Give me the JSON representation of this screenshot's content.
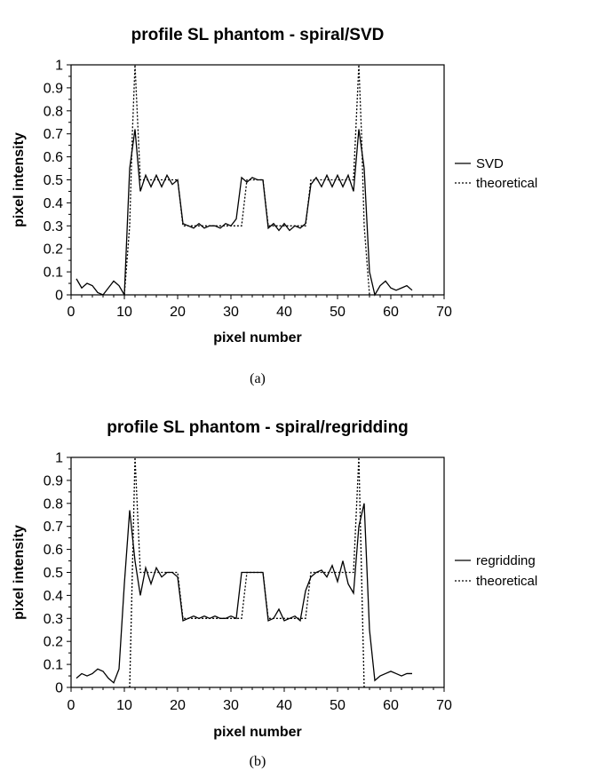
{
  "chart_data": [
    {
      "type": "line",
      "title": "profile SL phantom - spiral/SVD",
      "xlabel": "pixel number",
      "ylabel": "pixel intensity",
      "xlim": [
        0,
        70
      ],
      "ylim": [
        0,
        1
      ],
      "xticks": [
        "0",
        "10",
        "20",
        "30",
        "40",
        "50",
        "60",
        "70"
      ],
      "yticks": [
        "0",
        "0.1",
        "0.2",
        "0.3",
        "0.4",
        "0.5",
        "0.6",
        "0.7",
        "0.8",
        "0.9",
        "1"
      ],
      "legend_position": "right",
      "caption": "(a)",
      "series": [
        {
          "name": "SVD",
          "style": "solid",
          "x": [
            1,
            2,
            3,
            4,
            5,
            6,
            7,
            8,
            9,
            10,
            11,
            12,
            13,
            14,
            15,
            16,
            17,
            18,
            19,
            20,
            21,
            22,
            23,
            24,
            25,
            26,
            27,
            28,
            29,
            30,
            31,
            32,
            33,
            34,
            35,
            36,
            37,
            38,
            39,
            40,
            41,
            42,
            43,
            44,
            45,
            46,
            47,
            48,
            49,
            50,
            51,
            52,
            53,
            54,
            55,
            56,
            57,
            58,
            59,
            60,
            61,
            62,
            63,
            64
          ],
          "y": [
            0.07,
            0.03,
            0.05,
            0.04,
            0.01,
            0.0,
            0.03,
            0.06,
            0.04,
            0.0,
            0.55,
            0.72,
            0.45,
            0.52,
            0.47,
            0.52,
            0.47,
            0.52,
            0.48,
            0.5,
            0.31,
            0.3,
            0.29,
            0.31,
            0.29,
            0.3,
            0.3,
            0.29,
            0.31,
            0.3,
            0.33,
            0.51,
            0.49,
            0.51,
            0.5,
            0.5,
            0.29,
            0.31,
            0.28,
            0.31,
            0.28,
            0.3,
            0.29,
            0.31,
            0.48,
            0.51,
            0.47,
            0.52,
            0.47,
            0.52,
            0.47,
            0.52,
            0.45,
            0.72,
            0.55,
            0.1,
            0.0,
            0.04,
            0.06,
            0.03,
            0.02,
            0.03,
            0.04,
            0.02
          ]
        },
        {
          "name": "theoretical",
          "style": "dotted",
          "x": [
            10,
            11,
            11.5,
            12,
            12.5,
            13,
            20,
            21,
            32,
            33,
            36,
            37,
            44,
            45,
            53,
            53.5,
            54,
            54.5,
            55,
            56
          ],
          "y": [
            0,
            0.3,
            0.7,
            1.0,
            0.75,
            0.5,
            0.5,
            0.3,
            0.3,
            0.5,
            0.5,
            0.3,
            0.3,
            0.5,
            0.5,
            0.75,
            1.0,
            0.7,
            0.3,
            0
          ]
        }
      ]
    },
    {
      "type": "line",
      "title": "profile SL phantom - spiral/regridding",
      "xlabel": "pixel number",
      "ylabel": "pixel intensity",
      "xlim": [
        0,
        70
      ],
      "ylim": [
        0,
        1
      ],
      "xticks": [
        "0",
        "10",
        "20",
        "30",
        "40",
        "50",
        "60",
        "70"
      ],
      "yticks": [
        "0",
        "0.1",
        "0.2",
        "0.3",
        "0.4",
        "0.5",
        "0.6",
        "0.7",
        "0.8",
        "0.9",
        "1"
      ],
      "legend_position": "right",
      "caption": "(b)",
      "series": [
        {
          "name": "regridding",
          "style": "solid",
          "x": [
            1,
            2,
            3,
            4,
            5,
            6,
            7,
            8,
            9,
            10,
            11,
            12,
            13,
            14,
            15,
            16,
            17,
            18,
            19,
            20,
            21,
            22,
            23,
            24,
            25,
            26,
            27,
            28,
            29,
            30,
            31,
            32,
            33,
            34,
            35,
            36,
            37,
            38,
            39,
            40,
            41,
            42,
            43,
            44,
            45,
            46,
            47,
            48,
            49,
            50,
            51,
            52,
            53,
            54,
            55,
            56,
            57,
            58,
            59,
            60,
            61,
            62,
            63,
            64
          ],
          "y": [
            0.04,
            0.06,
            0.05,
            0.06,
            0.08,
            0.07,
            0.04,
            0.02,
            0.08,
            0.45,
            0.77,
            0.55,
            0.4,
            0.52,
            0.45,
            0.52,
            0.48,
            0.5,
            0.5,
            0.48,
            0.29,
            0.3,
            0.31,
            0.3,
            0.31,
            0.3,
            0.31,
            0.3,
            0.3,
            0.31,
            0.3,
            0.5,
            0.5,
            0.5,
            0.5,
            0.5,
            0.29,
            0.3,
            0.34,
            0.29,
            0.3,
            0.31,
            0.29,
            0.42,
            0.48,
            0.5,
            0.51,
            0.48,
            0.53,
            0.46,
            0.55,
            0.45,
            0.41,
            0.7,
            0.8,
            0.25,
            0.03,
            0.05,
            0.06,
            0.07,
            0.06,
            0.05,
            0.06,
            0.06
          ]
        },
        {
          "name": "theoretical",
          "style": "dotted",
          "x": [
            11,
            11.5,
            12,
            12.5,
            13,
            20,
            21,
            32,
            33,
            36,
            37,
            44,
            45,
            53,
            53.5,
            54,
            54.5,
            55
          ],
          "y": [
            0,
            0.5,
            1.0,
            0.75,
            0.5,
            0.5,
            0.3,
            0.3,
            0.5,
            0.5,
            0.3,
            0.3,
            0.5,
            0.5,
            0.75,
            1.0,
            0.5,
            0
          ]
        }
      ]
    }
  ]
}
